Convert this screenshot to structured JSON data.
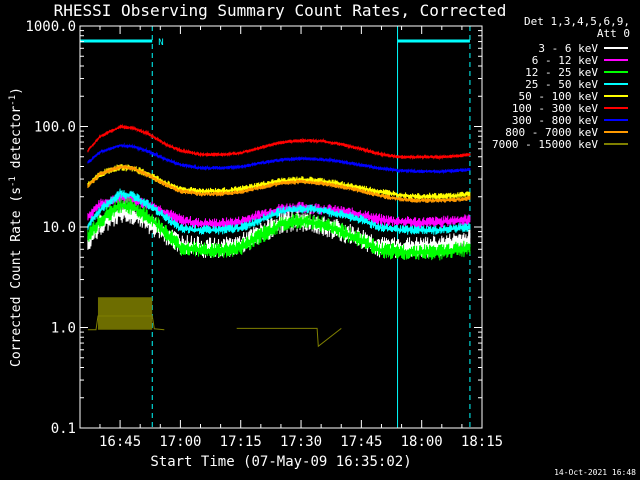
{
  "chart_data": {
    "type": "line",
    "title": "RHESSI Observing Summary Count Rates, Corrected",
    "xlabel": "Start Time (07-May-09 16:35:02)",
    "ylabel_parts": [
      "Corrected Count Rate (s",
      "-1",
      " detector",
      "-1",
      ")"
    ],
    "y_scale": "log",
    "ylim": [
      0.1,
      1000.0
    ],
    "y_ticks": [
      {
        "value": 0.1,
        "label": "0.1"
      },
      {
        "value": 1.0,
        "label": "1.0"
      },
      {
        "value": 10.0,
        "label": "10.0"
      },
      {
        "value": 100.0,
        "label": "100.0"
      },
      {
        "value": 1000.0,
        "label": "1000.0"
      }
    ],
    "xlim": [
      "16:35:02",
      "18:15"
    ],
    "x_ticks": [
      "16:45",
      "17:00",
      "17:15",
      "17:30",
      "17:45",
      "18:00",
      "18:15"
    ],
    "legend_header": [
      "Det 1,3,4,5,6,9,",
      "Att 0"
    ],
    "legend_position": "top-right, outside plot",
    "footer_date": "14-Oct-2021 16:48",
    "night_marker_label": "N",
    "night_intervals": [
      {
        "start": "16:35:02",
        "end": "16:53"
      },
      {
        "start": "17:54",
        "end": "18:12"
      }
    ],
    "series": [
      {
        "name": "3 - 6 keV",
        "color": "#ffffff",
        "noise": 0.09,
        "x": [
          "16:37",
          "16:40",
          "16:45",
          "16:48",
          "16:52",
          "16:56",
          "17:00",
          "17:05",
          "17:10",
          "17:15",
          "17:20",
          "17:25",
          "17:30",
          "17:35",
          "17:40",
          "17:45",
          "17:50",
          "17:55",
          "18:00",
          "18:05",
          "18:10",
          "18:12"
        ],
        "values": [
          7.5,
          11,
          14.5,
          14,
          11.5,
          9,
          7,
          6.5,
          6.3,
          7,
          9,
          11.5,
          12,
          11,
          9.5,
          8,
          6.5,
          6.5,
          6.5,
          6.8,
          7.5,
          7.8
        ]
      },
      {
        "name": "6 - 12 keV",
        "color": "#ff00ff",
        "noise": 0.05,
        "x": [
          "16:37",
          "16:40",
          "16:45",
          "16:48",
          "16:52",
          "16:56",
          "17:00",
          "17:05",
          "17:10",
          "17:15",
          "17:20",
          "17:25",
          "17:30",
          "17:35",
          "17:40",
          "17:45",
          "17:50",
          "17:55",
          "18:00",
          "18:05",
          "18:10",
          "18:12"
        ],
        "values": [
          13,
          17,
          20,
          19.5,
          17,
          14.5,
          12,
          11,
          11,
          11.5,
          13.5,
          15.5,
          16,
          15.5,
          14.5,
          13.5,
          12,
          11.5,
          11.3,
          11.5,
          12,
          12
        ]
      },
      {
        "name": "12 - 25 keV",
        "color": "#00ff00",
        "noise": 0.07,
        "x": [
          "16:37",
          "16:40",
          "16:45",
          "16:48",
          "16:52",
          "16:56",
          "17:00",
          "17:05",
          "17:10",
          "17:15",
          "17:20",
          "17:25",
          "17:30",
          "17:35",
          "17:40",
          "17:45",
          "17:50",
          "17:55",
          "18:00",
          "18:05",
          "18:10",
          "18:12"
        ],
        "values": [
          8.5,
          12,
          17,
          16.5,
          13,
          9.5,
          6.5,
          6,
          6,
          6.5,
          8.5,
          11,
          12,
          11,
          9.5,
          7.5,
          6,
          5.8,
          5.8,
          5.8,
          6.2,
          6.5
        ]
      },
      {
        "name": "25 - 50 keV",
        "color": "#00ffff",
        "noise": 0.04,
        "x": [
          "16:37",
          "16:40",
          "16:45",
          "16:48",
          "16:52",
          "16:56",
          "17:00",
          "17:05",
          "17:10",
          "17:15",
          "17:20",
          "17:25",
          "17:30",
          "17:35",
          "17:40",
          "17:45",
          "17:50",
          "17:55",
          "18:00",
          "18:05",
          "18:10",
          "18:12"
        ],
        "values": [
          10.5,
          15,
          22,
          21,
          17,
          13,
          9.8,
          9.5,
          9.5,
          10,
          12,
          14.5,
          15.5,
          15,
          13.5,
          12,
          10,
          9.5,
          9.5,
          9.5,
          10,
          10.2
        ]
      },
      {
        "name": "50 - 100 keV",
        "color": "#ffff00",
        "noise": 0.03,
        "x": [
          "16:37",
          "16:40",
          "16:45",
          "16:48",
          "16:52",
          "16:56",
          "17:00",
          "17:05",
          "17:10",
          "17:15",
          "17:20",
          "17:25",
          "17:30",
          "17:35",
          "17:40",
          "17:45",
          "17:50",
          "17:55",
          "18:00",
          "18:05",
          "18:10",
          "18:12"
        ],
        "values": [
          27,
          34,
          40,
          39,
          34,
          28,
          24,
          23,
          23,
          24,
          26.5,
          29,
          30,
          29,
          27,
          24.5,
          22.5,
          21,
          20.5,
          20.5,
          21,
          21.5
        ]
      },
      {
        "name": "100 - 300 keV",
        "color": "#ff0000",
        "noise": 0.015,
        "x": [
          "16:37",
          "16:40",
          "16:45",
          "16:48",
          "16:52",
          "16:56",
          "17:00",
          "17:05",
          "17:10",
          "17:15",
          "17:20",
          "17:25",
          "17:30",
          "17:35",
          "17:40",
          "17:45",
          "17:50",
          "17:55",
          "18:00",
          "18:05",
          "18:10",
          "18:12"
        ],
        "values": [
          58,
          80,
          100,
          98,
          85,
          68,
          58,
          53,
          53,
          55,
          62,
          70,
          73,
          72,
          67,
          60,
          53,
          50,
          50,
          50,
          52,
          53
        ]
      },
      {
        "name": "300 - 800 keV",
        "color": "#0000ff",
        "noise": 0.015,
        "x": [
          "16:37",
          "16:40",
          "16:45",
          "16:48",
          "16:52",
          "16:56",
          "17:00",
          "17:05",
          "17:10",
          "17:15",
          "17:20",
          "17:25",
          "17:30",
          "17:35",
          "17:40",
          "17:45",
          "17:50",
          "17:55",
          "18:00",
          "18:05",
          "18:10",
          "18:12"
        ],
        "values": [
          44,
          56,
          65,
          64,
          57,
          48,
          42,
          39,
          39,
          40,
          43.5,
          47,
          48.5,
          47.5,
          45,
          41.5,
          38.5,
          36.5,
          36,
          36,
          37,
          37.5
        ]
      },
      {
        "name": "800 - 7000 keV",
        "color": "#ff9900",
        "noise": 0.02,
        "x": [
          "16:37",
          "16:40",
          "16:45",
          "16:48",
          "16:52",
          "16:56",
          "17:00",
          "17:05",
          "17:10",
          "17:15",
          "17:20",
          "17:25",
          "17:30",
          "17:35",
          "17:40",
          "17:45",
          "17:50",
          "17:55",
          "18:00",
          "18:05",
          "18:10",
          "18:12"
        ],
        "values": [
          26,
          34,
          40,
          39,
          33,
          27,
          23,
          21.5,
          21.5,
          22.5,
          25,
          27.5,
          28.5,
          27.5,
          25.5,
          23,
          20.5,
          19,
          18.5,
          18.5,
          19,
          19.5
        ]
      },
      {
        "name": "7000 - 15000 keV",
        "color": "#808000",
        "noise": 0,
        "x": [
          "16:37",
          "16:39",
          "16:39.5",
          "16:53",
          "16:53.5",
          "16:56",
          "17:12",
          "17:14",
          "17:20",
          "17:27",
          "17:32",
          "17:33",
          "17:34",
          "17:34.3",
          "17:40"
        ],
        "values": [
          0.95,
          0.95,
          1.3,
          1.3,
          0.97,
          0.95,
          null,
          0.98,
          0.98,
          0.98,
          0.98,
          0.98,
          0.98,
          0.65,
          0.98
        ]
      }
    ]
  }
}
